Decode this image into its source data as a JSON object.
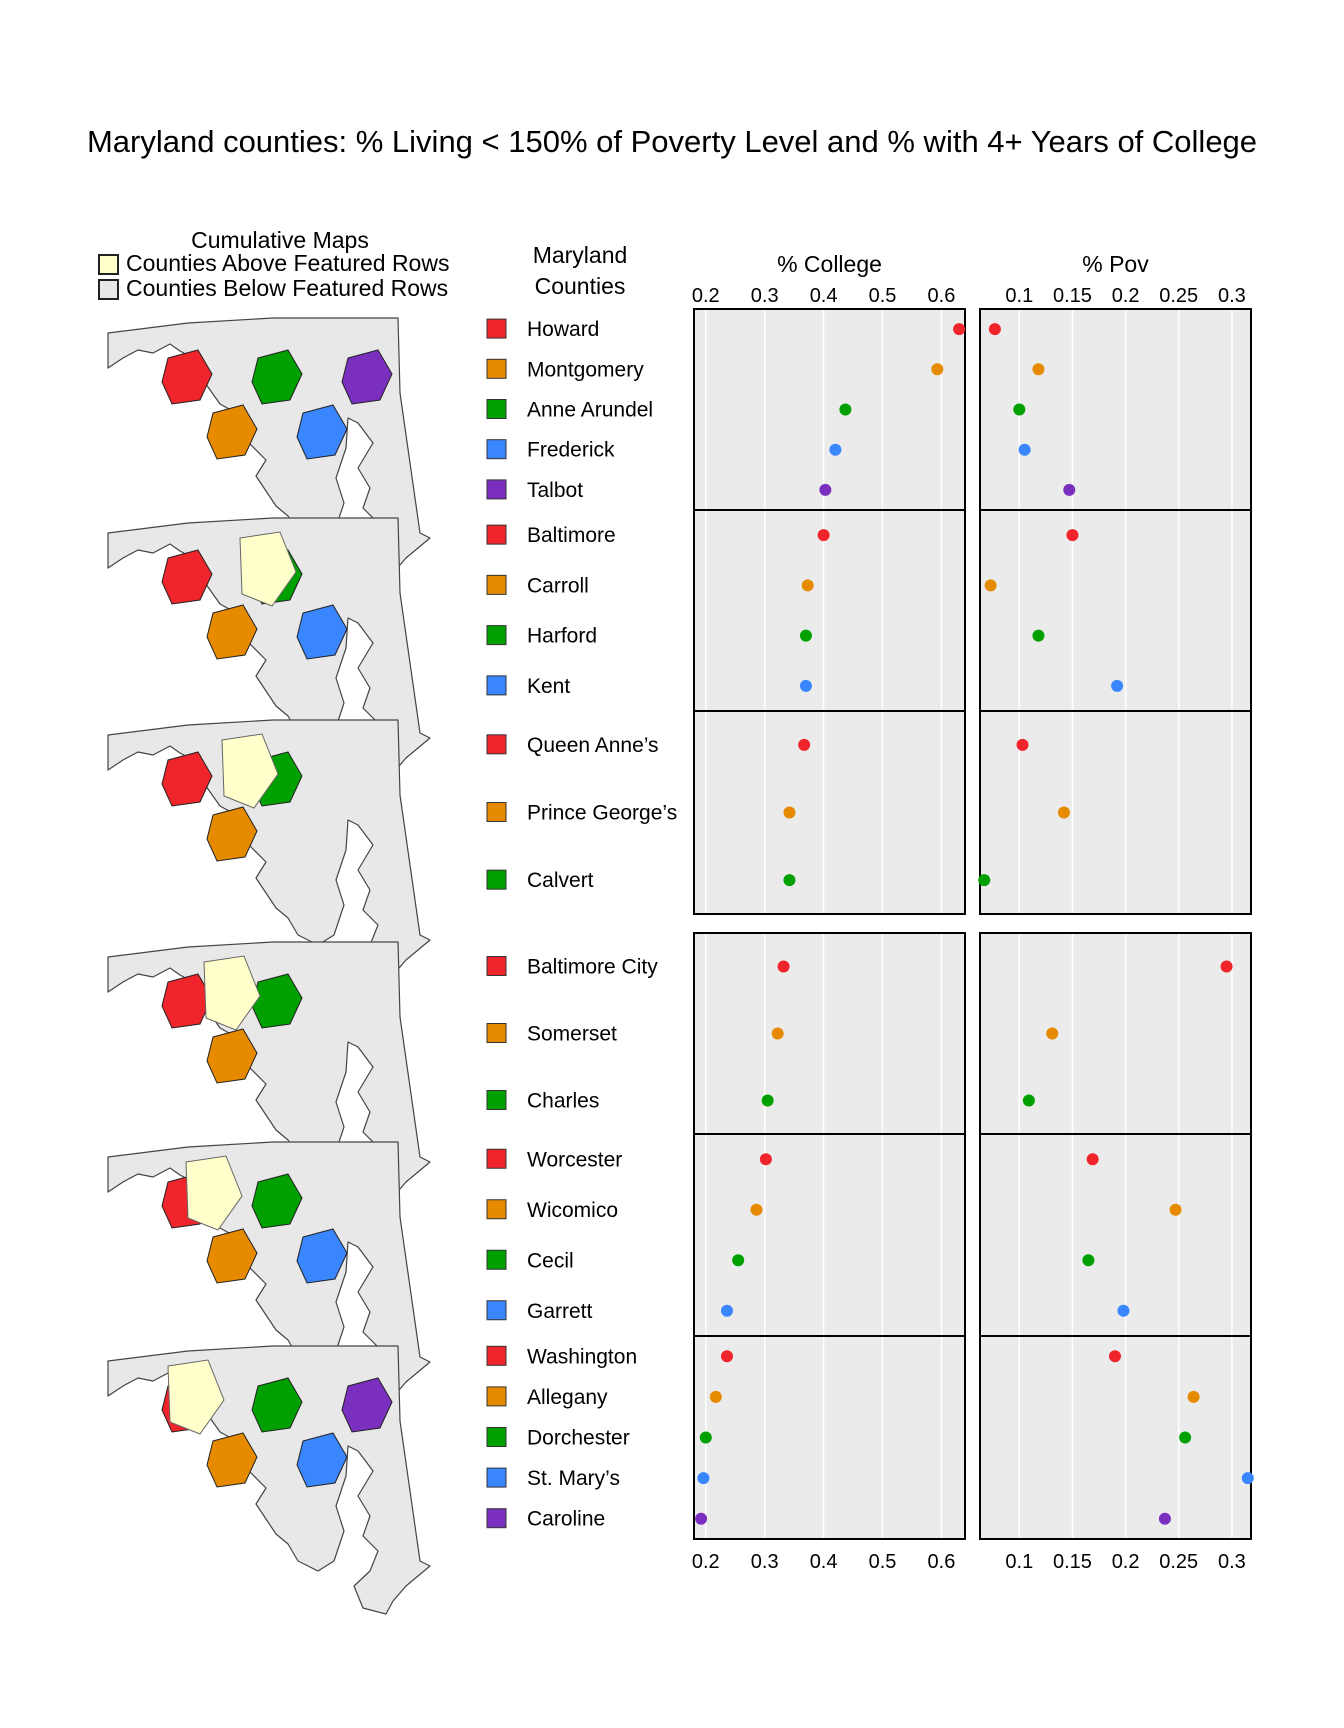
{
  "title": "Maryland counties: % Living < 150% of Poverty Level and % with 4+ Years of College",
  "maps_header": {
    "title": "Cumulative Maps",
    "above_label": "Counties Above Featured Rows",
    "below_label": "Counties Below Featured Rows",
    "above_color": "#ffffcc",
    "below_color": "#e8e8e8"
  },
  "names_header": [
    "Maryland",
    "Counties"
  ],
  "colors": [
    "#f0242b",
    "#e68a00",
    "#00a000",
    "#3a86ff",
    "#7b2fbe"
  ],
  "chart_data": {
    "type": "scatter",
    "panels": [
      {
        "title": "% College",
        "ticks": [
          0.2,
          0.3,
          0.4,
          0.5,
          0.6
        ],
        "xlim": [
          0.18,
          0.64
        ],
        "grid": true
      },
      {
        "title": "% Pov",
        "ticks": [
          0.1,
          0.15,
          0.2,
          0.25,
          0.3
        ],
        "xlim": [
          0.063,
          0.318
        ],
        "grid": true
      }
    ],
    "groups": [
      {
        "counties": [
          {
            "name": "Howard",
            "college": 0.63,
            "pov": 0.077
          },
          {
            "name": "Montgomery",
            "college": 0.593,
            "pov": 0.118
          },
          {
            "name": "Anne Arundel",
            "college": 0.437,
            "pov": 0.1
          },
          {
            "name": "Frederick",
            "college": 0.42,
            "pov": 0.105
          },
          {
            "name": "Talbot",
            "college": 0.403,
            "pov": 0.147
          }
        ]
      },
      {
        "counties": [
          {
            "name": "Baltimore",
            "college": 0.4,
            "pov": 0.15
          },
          {
            "name": "Carroll",
            "college": 0.373,
            "pov": 0.073
          },
          {
            "name": "Harford",
            "college": 0.37,
            "pov": 0.118
          },
          {
            "name": "Kent",
            "college": 0.37,
            "pov": 0.192
          }
        ]
      },
      {
        "counties": [
          {
            "name": "Queen Anne’s",
            "college": 0.367,
            "pov": 0.103
          },
          {
            "name": "Prince George’s",
            "college": 0.342,
            "pov": 0.142
          },
          {
            "name": "Calvert",
            "college": 0.342,
            "pov": 0.067
          }
        ]
      },
      {
        "counties": [
          {
            "name": "Baltimore City",
            "college": 0.332,
            "pov": 0.295
          },
          {
            "name": "Somerset",
            "college": 0.322,
            "pov": 0.131
          },
          {
            "name": "Charles",
            "college": 0.305,
            "pov": 0.109
          }
        ]
      },
      {
        "counties": [
          {
            "name": "Worcester",
            "college": 0.302,
            "pov": 0.169
          },
          {
            "name": "Wicomico",
            "college": 0.286,
            "pov": 0.247
          },
          {
            "name": "Cecil",
            "college": 0.255,
            "pov": 0.165
          },
          {
            "name": "Garrett",
            "college": 0.236,
            "pov": 0.198
          }
        ]
      },
      {
        "counties": [
          {
            "name": "Washington",
            "college": 0.236,
            "pov": 0.19
          },
          {
            "name": "Allegany",
            "college": 0.217,
            "pov": 0.264
          },
          {
            "name": "Dorchester",
            "college": 0.2,
            "pov": 0.256
          },
          {
            "name": "St. Mary’s",
            "college": 0.196,
            "pov": 0.315
          },
          {
            "name": "Caroline",
            "college": 0.192,
            "pov": 0.237
          }
        ]
      }
    ]
  }
}
